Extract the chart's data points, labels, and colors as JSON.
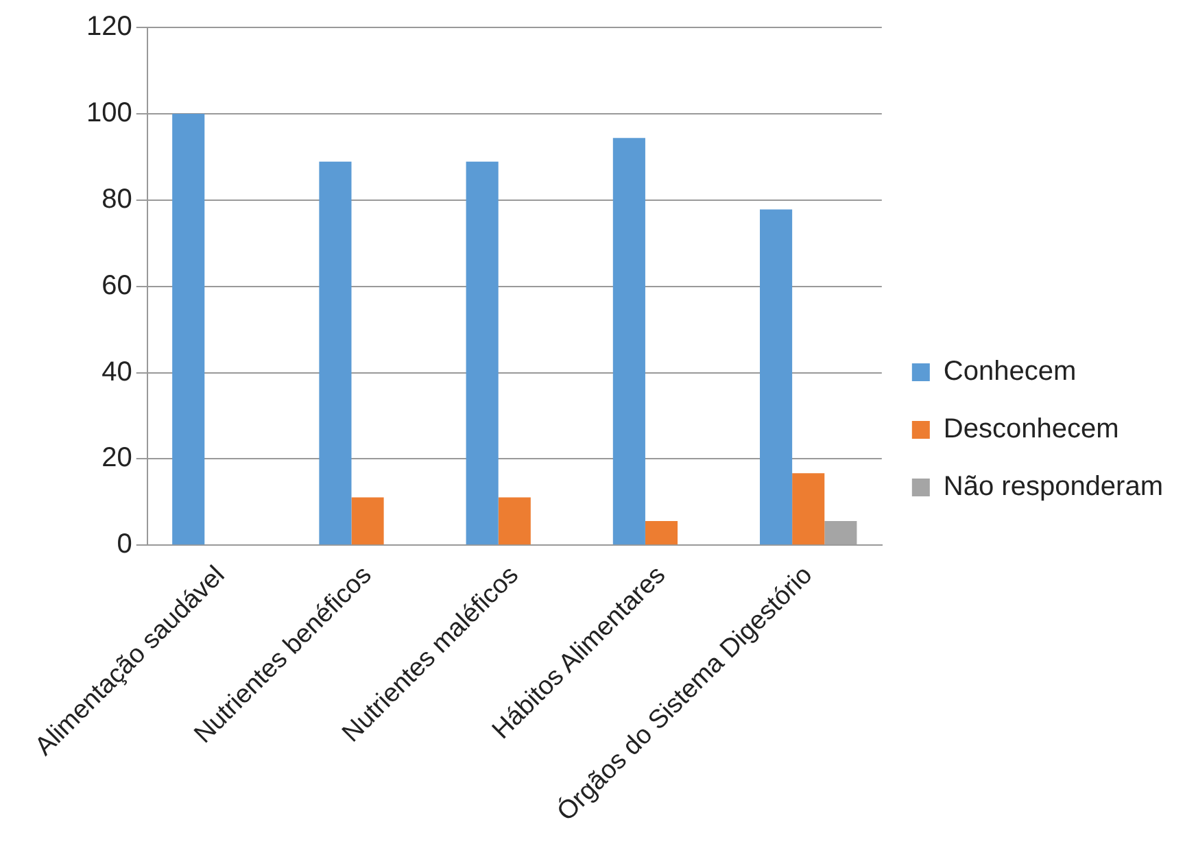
{
  "chart_data": {
    "type": "bar",
    "categories": [
      "Alimentação saudável",
      "Nutrientes benéficos",
      "Nutrientes maléficos",
      "Hábitos Alimentares",
      "Órgãos do Sistema Digestório"
    ],
    "series": [
      {
        "name": "Conhecem",
        "color": "#5b9bd5",
        "values": [
          100,
          88.9,
          88.9,
          94.4,
          77.8
        ]
      },
      {
        "name": "Desconhecem",
        "color": "#ed7d31",
        "values": [
          null,
          11.1,
          11.1,
          5.6,
          16.7
        ]
      },
      {
        "name": "Não responderam",
        "color": "#a5a5a5",
        "values": [
          null,
          null,
          null,
          null,
          5.6
        ]
      }
    ],
    "ylim": [
      0,
      120
    ],
    "yticks": [
      0,
      20,
      40,
      60,
      80,
      100,
      120
    ],
    "grid": "y",
    "legend": "right"
  }
}
